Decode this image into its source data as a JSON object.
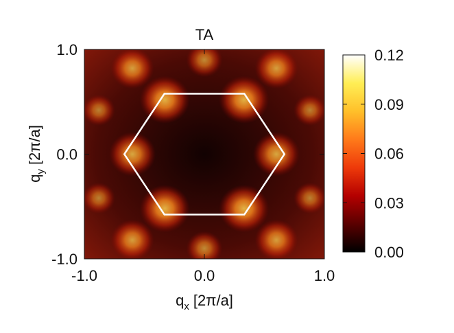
{
  "chart_data": {
    "type": "heatmap",
    "title": "TA",
    "xlabel": {
      "base": "q",
      "sub": "x",
      "unit": " [2π/a]"
    },
    "ylabel": {
      "base": "q",
      "sub": "y",
      "unit": " [2π/a]"
    },
    "xlim": [
      -1.0,
      1.0
    ],
    "ylim": [
      -1.0,
      1.0
    ],
    "xticks": [
      "-1.0",
      "0.0",
      "1.0"
    ],
    "yticks": [
      "1.0",
      "0.0",
      "-1.0"
    ],
    "colorbar": {
      "min": 0.0,
      "max": 0.12,
      "ticks": [
        "0.12",
        "0.09",
        "0.06",
        "0.03",
        "0.00"
      ],
      "stops": [
        "#000000",
        "#5a0000",
        "#b40000",
        "#ee3a0a",
        "#ff7a1a",
        "#ffc02a",
        "#ffee55",
        "#ffffff"
      ]
    },
    "brillouin_zone": {
      "shape": "hexagon",
      "vertices": [
        [
          0.667,
          0.0
        ],
        [
          0.333,
          0.577
        ],
        [
          -0.333,
          0.577
        ],
        [
          -0.667,
          0.0
        ],
        [
          -0.333,
          -0.577
        ],
        [
          0.333,
          -0.577
        ]
      ],
      "color": "#ffffff"
    },
    "hotspots": [
      {
        "x": -0.6,
        "y": 0.0,
        "value": 0.08
      },
      {
        "x": 0.6,
        "y": 0.0,
        "value": 0.08
      },
      {
        "x": -0.33,
        "y": 0.52,
        "value": 0.09
      },
      {
        "x": 0.33,
        "y": 0.52,
        "value": 0.09
      },
      {
        "x": -0.33,
        "y": -0.52,
        "value": 0.09
      },
      {
        "x": 0.33,
        "y": -0.52,
        "value": 0.09
      },
      {
        "x": -0.6,
        "y": 0.82,
        "value": 0.07
      },
      {
        "x": 0.6,
        "y": 0.82,
        "value": 0.07
      },
      {
        "x": -0.6,
        "y": -0.82,
        "value": 0.07
      },
      {
        "x": 0.6,
        "y": -0.82,
        "value": 0.07
      },
      {
        "x": 0.0,
        "y": 0.9,
        "value": 0.05
      },
      {
        "x": 0.0,
        "y": -0.9,
        "value": 0.05
      },
      {
        "x": -0.88,
        "y": 0.42,
        "value": 0.04
      },
      {
        "x": 0.88,
        "y": 0.42,
        "value": 0.04
      },
      {
        "x": -0.88,
        "y": -0.42,
        "value": 0.04
      },
      {
        "x": 0.88,
        "y": -0.42,
        "value": 0.04
      }
    ]
  }
}
